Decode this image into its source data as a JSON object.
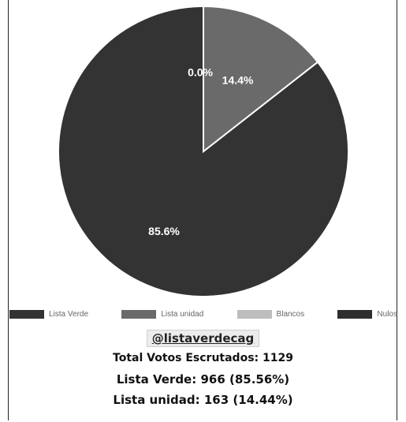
{
  "chart_data": {
    "type": "pie",
    "labels": [
      "Lista Verde",
      "Lista unidad",
      "Blancos",
      "Nulos"
    ],
    "values": [
      966,
      163,
      0,
      0
    ],
    "slice_labels": [
      "85.6%",
      "14.4%",
      "0.0%",
      ""
    ],
    "colors": [
      "#333333",
      "#6a6a6a",
      "#bdbdbd",
      "#2e2e2e"
    ],
    "legend_position": "bottom"
  },
  "caption": {
    "handle": "@listaverdecag",
    "total": "Total Votos Escrutados: 1129",
    "lista_verde": "Lista Verde: 966 (85.56%)",
    "lista_unidad": "Lista unidad: 163 (14.44%)"
  }
}
